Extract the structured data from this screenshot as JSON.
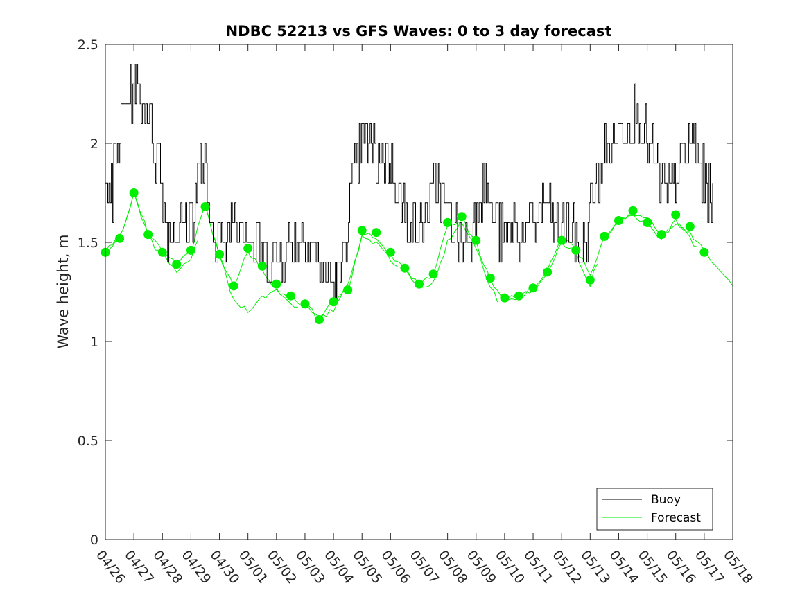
{
  "chart_data": {
    "type": "line",
    "title": "NDBC 52213 vs GFS Waves: 0 to 3 day forecast",
    "xlabel": "",
    "ylabel": "Wave height, m",
    "xlim": [
      0,
      22
    ],
    "ylim": [
      0,
      2.5
    ],
    "x_tick_labels": [
      "04/26",
      "04/27",
      "04/28",
      "04/29",
      "04/30",
      "05/01",
      "05/02",
      "05/03",
      "05/04",
      "05/05",
      "05/06",
      "05/07",
      "05/08",
      "05/09",
      "05/10",
      "05/11",
      "05/12",
      "05/13",
      "05/14",
      "05/15",
      "05/16",
      "05/17",
      "05/18"
    ],
    "y_ticks": [
      0,
      0.5,
      1,
      1.5,
      2,
      2.5
    ],
    "y_tick_labels": [
      "0",
      "0.5",
      "1",
      "1.5",
      "2",
      "2.5"
    ],
    "legend": {
      "position": "bottom-right",
      "entries": [
        "Buoy",
        "Forecast"
      ]
    },
    "colors": {
      "buoy": "#000000",
      "forecast": "#00ee00",
      "axis": "#262626"
    },
    "buoy_anchors": {
      "x": [
        0.0,
        0.1,
        0.25,
        0.3,
        0.5,
        0.7,
        0.9,
        1.0,
        1.2,
        1.5,
        1.7,
        1.9,
        2.0,
        2.1,
        2.4,
        2.7,
        3.0,
        3.1,
        3.2,
        3.3,
        3.5,
        3.6,
        3.8,
        3.9,
        4.0,
        4.1,
        4.2,
        4.3,
        4.5,
        4.8,
        5.0,
        5.2,
        5.3,
        5.5,
        5.7,
        5.9,
        6.0,
        6.3,
        6.6,
        7.0,
        7.2,
        7.4,
        7.5,
        7.6,
        7.7,
        7.8,
        8.0,
        8.2,
        8.4,
        8.6,
        8.9,
        9.2,
        9.5,
        9.7,
        10.0,
        10.2,
        10.3,
        10.5,
        10.8,
        11.0,
        11.2,
        11.4,
        11.5,
        11.7,
        11.9,
        12.1,
        12.3,
        12.5,
        12.7,
        12.9,
        13.0,
        13.3,
        13.5,
        13.8,
        14.0,
        14.3,
        14.6,
        15.0,
        15.3,
        15.5,
        15.7,
        15.9,
        16.2,
        16.5,
        16.7,
        16.9,
        17.1,
        17.3,
        17.5,
        17.8,
        18.0,
        18.3,
        18.6,
        18.9,
        19.2,
        19.4,
        19.6,
        19.8,
        20.0,
        20.2,
        20.4,
        20.6,
        20.8,
        21.0,
        21.2,
        21.3
      ],
      "y": [
        1.95,
        1.8,
        1.7,
        1.9,
        2.05,
        2.2,
        2.25,
        2.3,
        2.25,
        2.15,
        2.0,
        1.9,
        1.8,
        1.6,
        1.55,
        1.6,
        1.65,
        1.7,
        1.75,
        1.9,
        1.85,
        1.6,
        1.6,
        1.45,
        1.6,
        1.4,
        1.5,
        1.6,
        1.65,
        1.6,
        1.55,
        1.45,
        1.5,
        1.45,
        1.4,
        1.45,
        1.4,
        1.45,
        1.5,
        1.55,
        1.5,
        1.45,
        1.35,
        1.4,
        1.3,
        1.35,
        1.3,
        1.3,
        1.5,
        1.75,
        1.95,
        2.0,
        1.9,
        1.95,
        1.9,
        1.85,
        1.7,
        1.65,
        1.6,
        1.55,
        1.65,
        1.7,
        1.75,
        1.8,
        1.7,
        1.6,
        1.55,
        1.5,
        1.55,
        1.55,
        1.7,
        1.8,
        1.65,
        1.55,
        1.5,
        1.6,
        1.55,
        1.6,
        1.65,
        1.7,
        1.6,
        1.55,
        1.6,
        1.5,
        1.45,
        1.55,
        1.75,
        1.85,
        1.95,
        2.0,
        2.05,
        2.1,
        2.15,
        2.05,
        1.95,
        1.85,
        1.75,
        1.8,
        1.85,
        1.9,
        1.95,
        2.05,
        1.9,
        1.8,
        1.75,
        1.8
      ]
    },
    "forecast_markers": {
      "x": [
        0.0,
        0.5,
        1.0,
        1.5,
        2.0,
        2.5,
        3.0,
        3.5,
        4.0,
        4.5,
        5.0,
        5.5,
        6.0,
        6.5,
        7.0,
        7.5,
        8.0,
        8.5,
        9.0,
        9.5,
        10.0,
        10.5,
        11.0,
        11.5,
        12.0,
        12.5,
        13.0,
        13.5,
        14.0,
        14.5,
        15.0,
        15.5,
        16.0,
        16.5,
        17.0,
        17.5,
        18.0,
        18.5,
        19.0,
        19.5,
        20.0,
        20.5,
        21.0
      ],
      "y": [
        1.45,
        1.52,
        1.75,
        1.54,
        1.45,
        1.39,
        1.46,
        1.68,
        1.44,
        1.28,
        1.47,
        1.38,
        1.29,
        1.23,
        1.19,
        1.11,
        1.2,
        1.26,
        1.56,
        1.55,
        1.45,
        1.37,
        1.29,
        1.34,
        1.6,
        1.63,
        1.51,
        1.32,
        1.22,
        1.23,
        1.27,
        1.35,
        1.51,
        1.46,
        1.31,
        1.53,
        1.61,
        1.66,
        1.6,
        1.54,
        1.64,
        1.58,
        1.45
      ]
    },
    "forecast_runs": [
      {
        "x": [
          0.0,
          0.5,
          1.0,
          1.5,
          2.0,
          2.5,
          3.0,
          3.5,
          4.0,
          4.5,
          5.0,
          5.5,
          6.0,
          6.5,
          7.0,
          7.5,
          8.0,
          8.5,
          9.0,
          9.5,
          10.0,
          10.5,
          11.0,
          11.5,
          12.0,
          12.5,
          13.0,
          13.5,
          14.0,
          14.5,
          15.0,
          15.5,
          16.0,
          16.5,
          17.0,
          17.5,
          18.0,
          18.5,
          19.0,
          19.5,
          20.0,
          20.5,
          21.0,
          21.5,
          22.0
        ],
        "y": [
          1.45,
          1.52,
          1.75,
          1.54,
          1.45,
          1.39,
          1.46,
          1.68,
          1.44,
          1.2,
          1.16,
          1.22,
          1.26,
          1.22,
          1.18,
          1.11,
          1.16,
          1.3,
          1.52,
          1.5,
          1.44,
          1.36,
          1.28,
          1.3,
          1.5,
          1.62,
          1.5,
          1.3,
          1.2,
          1.22,
          1.27,
          1.36,
          1.52,
          1.47,
          1.34,
          1.52,
          1.6,
          1.65,
          1.62,
          1.55,
          1.6,
          1.55,
          1.45,
          1.36,
          1.28
        ]
      }
    ]
  }
}
